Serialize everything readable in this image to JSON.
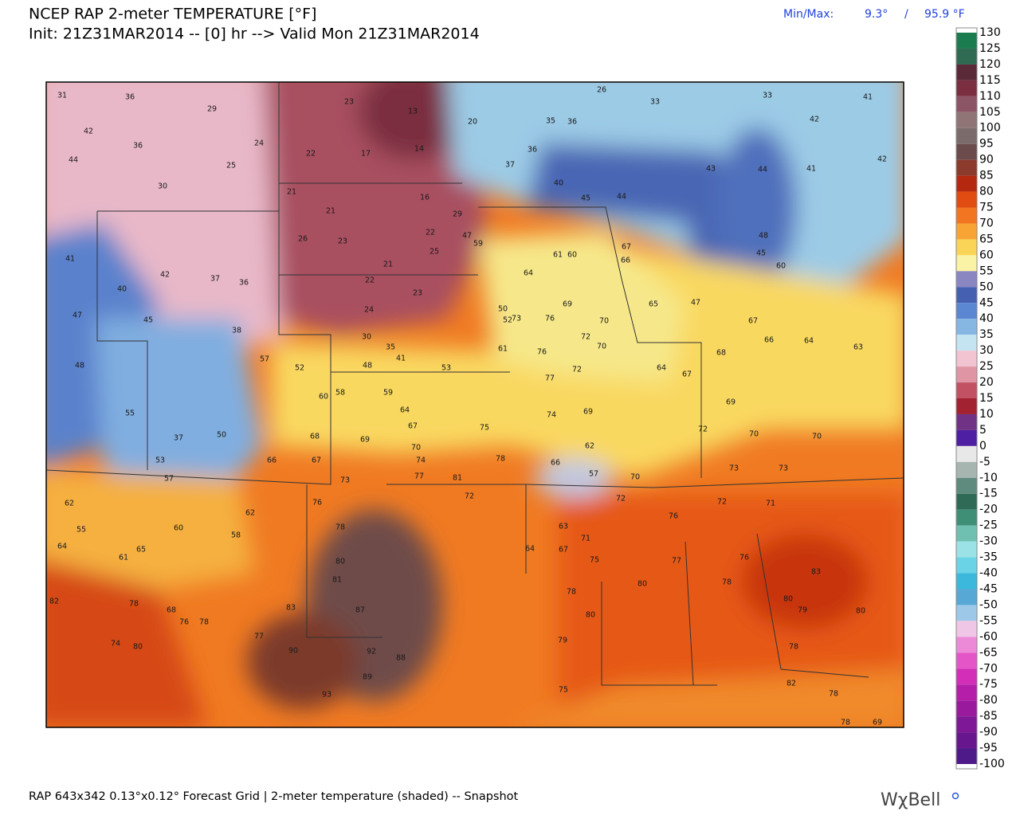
{
  "header": {
    "title": "NCEP RAP 2-meter TEMPERATURE [°F]",
    "subtitle": "Init: 21Z31MAR2014 -- [0] hr --> Valid Mon 21Z31MAR2014"
  },
  "minmax": {
    "label": "Min/Max:",
    "min": "9.3°",
    "separator": "/",
    "max": "95.9 °F"
  },
  "colorbar": {
    "labels": [
      130,
      125,
      120,
      115,
      110,
      105,
      100,
      95,
      90,
      85,
      80,
      75,
      70,
      65,
      60,
      55,
      50,
      45,
      40,
      35,
      30,
      25,
      20,
      15,
      10,
      5,
      0,
      -5,
      -10,
      -15,
      -20,
      -25,
      -30,
      -35,
      -40,
      -45,
      -50,
      -55,
      -60,
      -65,
      -70,
      -75,
      -80,
      -85,
      -90,
      -95,
      -100
    ],
    "colors": [
      "#1b7d4f",
      "#2f6a52",
      "#5a2a38",
      "#7a2e40",
      "#8c5566",
      "#8f7576",
      "#7c6b6b",
      "#6b4b4b",
      "#8c3a2b",
      "#b3280f",
      "#e04c12",
      "#f27522",
      "#f8a435",
      "#f9d457",
      "#faf2a4",
      "#8a86c2",
      "#4560b0",
      "#5a86d2",
      "#86b6e2",
      "#c4e4f2",
      "#f2c4d2",
      "#e095a5",
      "#c25263",
      "#a22232",
      "#6f3284",
      "#4e1fa3",
      "#e8e8e8",
      "#a6b5b0",
      "#5f8a7e",
      "#2e6a55",
      "#3f8f77",
      "#6fc0b0",
      "#9ae2e6",
      "#6ad4e6",
      "#3cb8dc",
      "#58a8d6",
      "#9ec8e8",
      "#f0c6e6",
      "#ec8ad8",
      "#e456c8",
      "#d22eb8",
      "#b41ea8",
      "#9a1a9e",
      "#7e1896",
      "#68168e",
      "#4e1a8a"
    ]
  },
  "stations": [
    31,
    36,
    29,
    42,
    36,
    24,
    25,
    44,
    30,
    22,
    23,
    13,
    14,
    17,
    21,
    21,
    16,
    29,
    26,
    23,
    22,
    25,
    21,
    22,
    23,
    24,
    30,
    35,
    41,
    53,
    48,
    59,
    58,
    60,
    64,
    67,
    69,
    68,
    70,
    74,
    73,
    77,
    81,
    76,
    78,
    80,
    81,
    83,
    87,
    92,
    88,
    89,
    93,
    82,
    74,
    80,
    78,
    68,
    76,
    78,
    77,
    90,
    62,
    55,
    64,
    65,
    61,
    60,
    58,
    62,
    57,
    53,
    37,
    50,
    45,
    38,
    37,
    36,
    40,
    42,
    41,
    47,
    48,
    55,
    52,
    57,
    66,
    67,
    75,
    78,
    76,
    77,
    72,
    69,
    62,
    57,
    70,
    72,
    76,
    77,
    80,
    80,
    79,
    75,
    78,
    73,
    72,
    71,
    76,
    78,
    80,
    79,
    80,
    78,
    83,
    82,
    78,
    78,
    69,
    66,
    65,
    64,
    67,
    68,
    69,
    72,
    70,
    70,
    73,
    63,
    64,
    66,
    67,
    60,
    45,
    48,
    47,
    44,
    45,
    43,
    44,
    41,
    33,
    41,
    42,
    42,
    35,
    36,
    40,
    37,
    36,
    26,
    33,
    20,
    61,
    60,
    67,
    69,
    70,
    72,
    74,
    73,
    76,
    70,
    64,
    59,
    47,
    50,
    52,
    61,
    66,
    71,
    64,
    63,
    67,
    75,
    72
  ],
  "footer": {
    "grid": "RAP 643x342 0.13°x0.12° Forecast Grid | 2-meter temperature (shaded) -- Snapshot",
    "logo": "WχBell"
  }
}
